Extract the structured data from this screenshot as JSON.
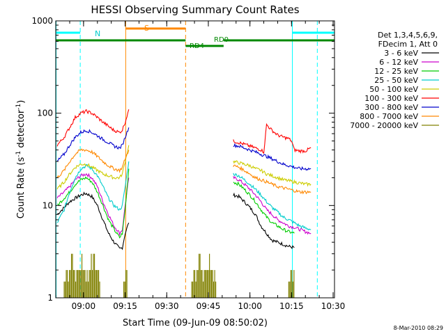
{
  "chart_data": {
    "type": "line",
    "title": "HESSI Observing Summary Count Rates",
    "xlabel": "Start Time (09-Jun-09 08:50:02)",
    "ylabel_main": "Count Rate (s",
    "ylabel_sup1": "-1",
    "ylabel_mid": " detector",
    "ylabel_sup2": "-1",
    "ylabel_end": ")",
    "y_scale": "log",
    "xlim_min": [
      -0.03,
      100.5
    ],
    "ylim": [
      1,
      1000
    ],
    "x_tick_positions": [
      10,
      25,
      40,
      55,
      70,
      85,
      100
    ],
    "x_tick_labels": [
      "09:00",
      "09:15",
      "09:30",
      "09:45",
      "10:00",
      "10:15",
      "10:30"
    ],
    "y_tick_values": [
      1,
      10,
      100,
      1000
    ],
    "y_tick_labels": [
      "1",
      "10",
      "100",
      "1000"
    ],
    "legend_title_1": "Det 1,3,4,5,6,9,",
    "legend_title_2": "FDecim 1, Att 0",
    "legend_placement": "right, outside plot",
    "series": [
      {
        "name": "3 - 6 keV",
        "color": "#000000",
        "x": [
          0.5,
          3,
          5,
          7,
          9,
          11,
          13,
          15,
          17,
          19,
          21,
          23,
          24,
          25,
          26.3,
          64,
          66,
          68,
          70,
          72,
          74,
          76,
          78,
          80,
          82,
          84,
          86
        ],
        "values": [
          8,
          9.5,
          11,
          12,
          13,
          13.5,
          12.5,
          10,
          7,
          5,
          4,
          3.4,
          3.5,
          5,
          6.5,
          13,
          12.5,
          11,
          9.5,
          8,
          6,
          5,
          4.2,
          4,
          3.8,
          3.6,
          3.5
        ]
      },
      {
        "name": "6 - 12 keV",
        "color": "#cc00cc",
        "x": [
          0.5,
          3,
          5,
          7,
          9,
          11,
          13,
          15,
          17,
          19,
          21,
          23,
          24,
          25,
          26.3,
          64,
          66,
          68,
          70,
          72,
          74,
          76,
          78,
          80,
          82,
          84,
          86,
          88,
          90,
          92
        ],
        "values": [
          12,
          14,
          16,
          19,
          21,
          22,
          20,
          16,
          11,
          8,
          6,
          5,
          5.5,
          10,
          20,
          20,
          19,
          17,
          15,
          13,
          11,
          9,
          8,
          7,
          6.5,
          6,
          5.8,
          5.5,
          5.2,
          5
        ]
      },
      {
        "name": "12 - 25 keV",
        "color": "#00cc00",
        "x": [
          0.5,
          3,
          5,
          7,
          9,
          11,
          13,
          15,
          17,
          19,
          21,
          23,
          24,
          25,
          26.3,
          64,
          66,
          68,
          70,
          72,
          74,
          76,
          78,
          80,
          82,
          84,
          86
        ],
        "values": [
          10,
          12,
          14,
          17,
          19,
          20,
          18,
          14,
          10,
          7,
          5.5,
          4.5,
          5,
          9,
          25,
          18,
          17,
          15,
          13,
          11,
          9,
          7.5,
          6.5,
          6,
          5.5,
          5.2,
          5
        ]
      },
      {
        "name": "25 - 50 keV",
        "color": "#00cccc",
        "x": [
          0.5,
          3,
          5,
          7,
          9,
          11,
          13,
          15,
          17,
          19,
          21,
          23,
          24,
          25,
          26.3,
          64,
          66,
          68,
          70,
          72,
          74,
          76,
          78,
          80,
          82,
          84,
          86,
          88,
          90,
          92
        ],
        "values": [
          6.5,
          9,
          14,
          20,
          25,
          27,
          25,
          21,
          16,
          12,
          10,
          9,
          10,
          16,
          30,
          22,
          21,
          19,
          17,
          15,
          13,
          11,
          9.5,
          8.5,
          7.5,
          7,
          6.5,
          6,
          5.7,
          5.5
        ]
      },
      {
        "name": "50 - 100 keV",
        "color": "#cccc00",
        "x": [
          0.5,
          3,
          5,
          7,
          9,
          11,
          13,
          15,
          17,
          19,
          21,
          23,
          24,
          25,
          26.3,
          64,
          66,
          68,
          70,
          72,
          74,
          76,
          78,
          80,
          82,
          84,
          86,
          88,
          90,
          92
        ],
        "values": [
          15,
          18,
          22,
          26,
          28,
          28,
          26,
          24,
          22,
          21,
          20,
          20,
          22,
          30,
          45,
          30,
          29,
          28,
          27,
          25,
          24,
          22,
          21,
          20,
          19,
          18.5,
          18,
          17.5,
          17,
          17
        ]
      },
      {
        "name": "100 - 300 keV",
        "color": "#ff0000",
        "x": [
          0.5,
          3,
          5,
          7,
          9,
          11,
          13,
          15,
          17,
          19,
          21,
          23,
          24,
          25,
          26.3,
          64,
          66,
          68,
          70,
          72,
          74,
          75,
          76,
          78,
          80,
          82,
          84,
          85,
          86,
          88,
          90,
          92
        ],
        "values": [
          45,
          55,
          70,
          90,
          100,
          105,
          100,
          90,
          80,
          72,
          65,
          62,
          66,
          80,
          110,
          50,
          48,
          46,
          44,
          42,
          40,
          38,
          75,
          65,
          58,
          55,
          53,
          50,
          40,
          39,
          39,
          42
        ]
      },
      {
        "name": "300 - 800 keV",
        "color": "#0000cc",
        "x": [
          0.5,
          3,
          5,
          7,
          9,
          11,
          13,
          15,
          17,
          19,
          21,
          23,
          24,
          25,
          26.3,
          64,
          66,
          68,
          70,
          72,
          74,
          76,
          78,
          80,
          82,
          84,
          86,
          88,
          90,
          92
        ],
        "values": [
          30,
          36,
          45,
          55,
          62,
          65,
          62,
          57,
          52,
          48,
          44,
          42,
          45,
          55,
          70,
          45,
          44,
          42,
          40,
          38,
          36,
          34,
          32,
          30,
          28,
          27,
          26,
          25,
          25,
          25
        ]
      },
      {
        "name": "800 - 7000 keV",
        "color": "#ff8800",
        "x": [
          0.5,
          3,
          5,
          7,
          9,
          11,
          13,
          15,
          17,
          19,
          21,
          23,
          24,
          25,
          26.3,
          64,
          66,
          68,
          70,
          72,
          74,
          76,
          78,
          80,
          82,
          84,
          86,
          88,
          90,
          92
        ],
        "values": [
          20,
          24,
          30,
          36,
          40,
          40,
          38,
          34,
          30,
          27,
          25,
          24,
          26,
          32,
          40,
          27,
          26,
          24,
          22,
          20,
          19,
          18,
          17,
          16,
          15.5,
          15,
          14.5,
          14,
          14,
          14
        ]
      },
      {
        "name": "7000 - 20000 keV",
        "color": "#808000",
        "x": [],
        "values": []
      }
    ],
    "flags": {
      "N_label": "N",
      "S_label": "S",
      "RD0_label": "RD0",
      "RD4_label": "RD4"
    }
  },
  "footer": {
    "timestamp": "8-Mar-2010 08:29"
  },
  "colors": {
    "night": "#00ffff",
    "saa": "#ff8800",
    "decim": "#008800",
    "attenuator_noise": "#808000"
  }
}
